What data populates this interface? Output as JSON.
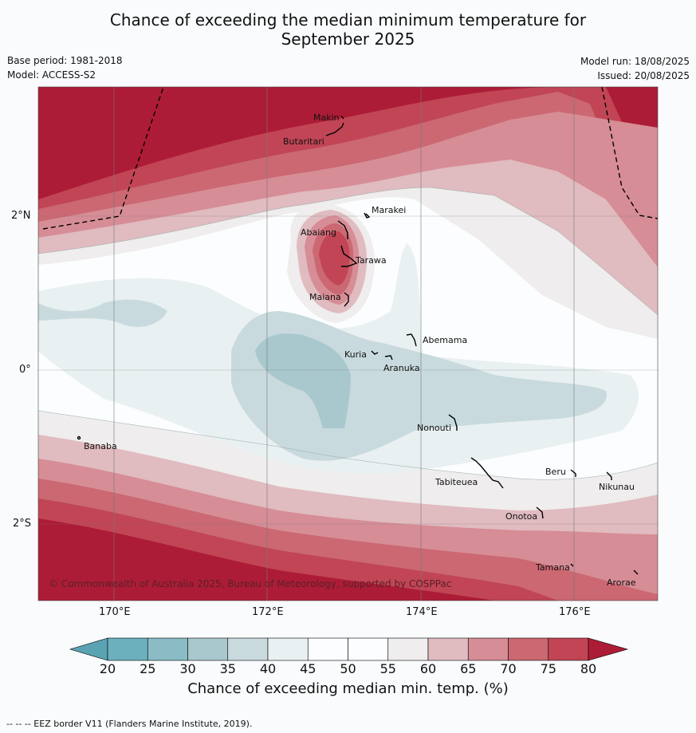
{
  "title_line1": "Chance of exceeding the median minimum temperature for",
  "title_line2": "September 2025",
  "base_period": "Base period: 1981-2018",
  "model": "Model: ACCESS-S2",
  "model_run": "Model run: 18/08/2025",
  "issued": "Issued: 20/08/2025",
  "copyright": "© Commonwealth of Australia 2025, Bureau of Meteorology, supported by COSPPac",
  "axes": {
    "x_ticks": [
      "170°E",
      "172°E",
      "174°E",
      "176°E"
    ],
    "y_ticks": [
      "2°N",
      "0°",
      "2°S"
    ]
  },
  "places": {
    "makin": "Makin",
    "butaritari": "Butaritari",
    "marakei": "Marakei",
    "abaiang": "Abaiang",
    "tarawa": "Tarawa",
    "maiana": "Maiana",
    "abemama": "Abemama",
    "kuria": "Kuria",
    "aranuka": "Aranuka",
    "nonouti": "Nonouti",
    "banaba": "Banaba",
    "beru": "Beru",
    "nikunau": "Nikunau",
    "tabiteuea": "Tabiteuea",
    "onotoa": "Onotoa",
    "tamana": "Tamana",
    "arorae": "Arorae"
  },
  "colorbar": {
    "ticks": [
      "20",
      "25",
      "30",
      "35",
      "40",
      "45",
      "50",
      "55",
      "60",
      "65",
      "70",
      "75",
      "80"
    ],
    "colors": [
      "#6cb0be",
      "#8bbcc5",
      "#a8c8cd",
      "#c9dade",
      "#e9f0f1",
      "#fbfdfe",
      "#fbfdfe",
      "#efeded",
      "#e0bbc0",
      "#d68d96",
      "#cb6872",
      "#c14555"
    ],
    "under_color": "#5aa3b3",
    "over_color": "#ad1c36",
    "title": "Chance of exceeding median min. temp. (%)"
  },
  "footer": "-- -- -- EEZ border V11 (Flanders Marine Institute, 2019)."
}
